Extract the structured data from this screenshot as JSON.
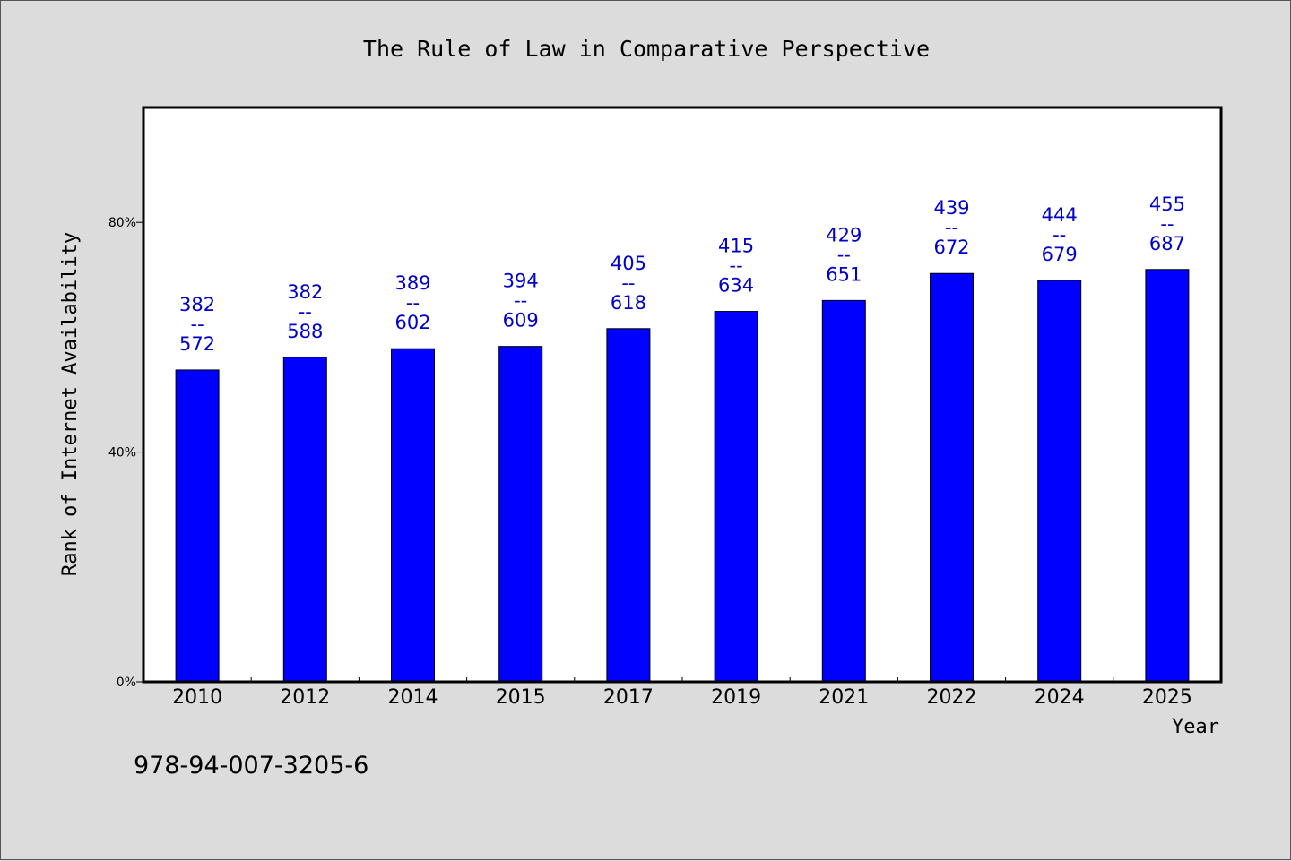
{
  "chart_data": {
    "type": "bar",
    "title": "The Rule of Law in Comparative Perspective",
    "xlabel": "Year",
    "ylabel": "Rank of Internet Availability",
    "ylim": [
      0,
      100
    ],
    "yticks": [
      {
        "value": 0,
        "label": "0%"
      },
      {
        "value": 40,
        "label": "40%"
      },
      {
        "value": 80,
        "label": "80%"
      }
    ],
    "categories": [
      "2010",
      "2012",
      "2014",
      "2015",
      "2017",
      "2019",
      "2021",
      "2022",
      "2024",
      "2025"
    ],
    "values": [
      54.3,
      56.5,
      58.0,
      58.4,
      61.5,
      64.5,
      66.4,
      71.1,
      69.9,
      71.8
    ],
    "data_labels": [
      {
        "top": "382",
        "sep": "--",
        "bottom": "572"
      },
      {
        "top": "382",
        "sep": "--",
        "bottom": "588"
      },
      {
        "top": "389",
        "sep": "--",
        "bottom": "602"
      },
      {
        "top": "394",
        "sep": "--",
        "bottom": "609"
      },
      {
        "top": "405",
        "sep": "--",
        "bottom": "618"
      },
      {
        "top": "415",
        "sep": "--",
        "bottom": "634"
      },
      {
        "top": "429",
        "sep": "--",
        "bottom": "651"
      },
      {
        "top": "439",
        "sep": "--",
        "bottom": "672"
      },
      {
        "top": "444",
        "sep": "--",
        "bottom": "679"
      },
      {
        "top": "455",
        "sep": "--",
        "bottom": "687"
      }
    ],
    "grid": false,
    "bar_color": "#0000ff",
    "label_color": "#0000cc",
    "background_color": "#dcdcdc",
    "plot_background_color": "#ffffff"
  },
  "footnote": "978-94-007-3205-6"
}
